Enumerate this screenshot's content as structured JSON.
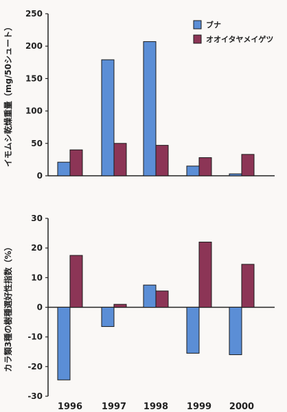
{
  "chart_data": [
    {
      "type": "bar",
      "categories": [
        "1996",
        "1997",
        "1998",
        "1999",
        "2000"
      ],
      "series": [
        {
          "name": "ブナ",
          "color": "#5b8ed6",
          "values": [
            21,
            179,
            207,
            15,
            3
          ]
        },
        {
          "name": "オオイタヤメイゲツ",
          "color": "#8c3556",
          "values": [
            40,
            50,
            47,
            28,
            33
          ]
        }
      ],
      "ylabel": "イモムシ乾燥重量（mg/50シュート）",
      "ylim": [
        0,
        250
      ],
      "yticks": [
        "0",
        "50",
        "100",
        "150",
        "200",
        "250"
      ],
      "legend": "top-right",
      "grid": false
    },
    {
      "type": "bar",
      "categories": [
        "1996",
        "1997",
        "1998",
        "1999",
        "2000"
      ],
      "series": [
        {
          "color": "#5b8ed6",
          "values": [
            -24.5,
            -6.5,
            7.5,
            -15.5,
            -16
          ]
        },
        {
          "color": "#8c3556",
          "values": [
            17.5,
            1,
            5.5,
            22,
            14.5
          ]
        }
      ],
      "ylabel": "カラ類3種の樹種選好性指数（%）",
      "ylim": [
        -30,
        30
      ],
      "yticks": [
        "-30",
        "-20",
        "-10",
        "0",
        "10",
        "20",
        "30"
      ],
      "grid": false
    }
  ]
}
